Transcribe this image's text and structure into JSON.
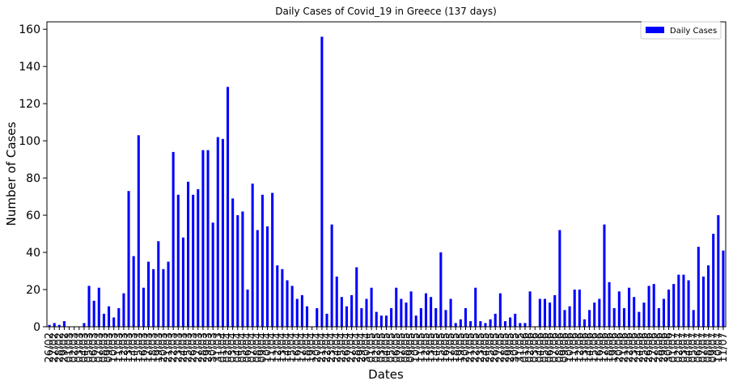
{
  "chart_data": {
    "type": "bar",
    "title": "Daily Cases of Covid_19 in Greece (137 days)",
    "xlabel": "Dates",
    "ylabel": "Number of Cases",
    "ylim": [
      0,
      164
    ],
    "yticks": [
      0,
      20,
      40,
      60,
      80,
      100,
      120,
      140,
      160
    ],
    "legend_position": "top-right",
    "grid": false,
    "bar_color": "#0000ff",
    "series": [
      {
        "name": "Daily Cases",
        "values": [
          1,
          2,
          1,
          3,
          0,
          0,
          0,
          2,
          22,
          14,
          21,
          7,
          11,
          5,
          10,
          18,
          73,
          38,
          103,
          21,
          35,
          31,
          46,
          31,
          35,
          94,
          71,
          48,
          78,
          71,
          74,
          95,
          95,
          56,
          102,
          101,
          129,
          69,
          60,
          62,
          20,
          77,
          52,
          71,
          54,
          72,
          33,
          31,
          25,
          22,
          15,
          17,
          11,
          0,
          10,
          156,
          7,
          55,
          27,
          16,
          11,
          17,
          32,
          10,
          15,
          21,
          8,
          6,
          6,
          10,
          21,
          15,
          13,
          19,
          6,
          10,
          18,
          16,
          10,
          40,
          9,
          15,
          2,
          4,
          10,
          3,
          21,
          3,
          2,
          4,
          7,
          18,
          3,
          5,
          7,
          2,
          2,
          19,
          0,
          15,
          15,
          13,
          17,
          52,
          9,
          11,
          20,
          20,
          4,
          9,
          13,
          15,
          55,
          24,
          10,
          19,
          10,
          21,
          16,
          8,
          13,
          22,
          23,
          10,
          15,
          20,
          23,
          28,
          28,
          25,
          9,
          43,
          27,
          33,
          50,
          60,
          41
        ]
      }
    ],
    "categories": [
      "26/02",
      "27/02",
      "28/02",
      "29/02",
      "01/03",
      "02/03",
      "03/03",
      "04/03",
      "05/03",
      "06/03",
      "07/03",
      "08/03",
      "09/03",
      "10/03",
      "11/03",
      "12/03",
      "13/03",
      "14/03",
      "15/03",
      "16/03",
      "17/03",
      "18/03",
      "19/03",
      "20/03",
      "21/03",
      "22/03",
      "23/03",
      "24/03",
      "25/03",
      "26/03",
      "27/03",
      "28/03",
      "29/03",
      "30/03",
      "31/03",
      "01/04",
      "02/04",
      "03/04",
      "04/04",
      "05/04",
      "06/04",
      "07/04",
      "08/04",
      "09/04",
      "10/04",
      "11/04",
      "12/04",
      "13/04",
      "14/04",
      "15/04",
      "16/04",
      "17/04",
      "18/04",
      "19/04",
      "20/04",
      "21/04",
      "22/04",
      "23/04",
      "24/04",
      "25/04",
      "26/04",
      "27/04",
      "28/04",
      "29/04",
      "30/04",
      "01/05",
      "02/05",
      "03/05",
      "04/05",
      "05/05",
      "06/05",
      "07/05",
      "08/05",
      "09/05",
      "10/05",
      "11/05",
      "12/05",
      "13/05",
      "14/05",
      "15/05",
      "16/05",
      "17/05",
      "18/05",
      "19/05",
      "20/05",
      "21/05",
      "22/05",
      "23/05",
      "24/05",
      "25/05",
      "26/05",
      "27/05",
      "28/05",
      "29/05",
      "30/05",
      "31/05",
      "01/06",
      "02/06",
      "03/06",
      "04/06",
      "05/06",
      "06/06",
      "07/06",
      "08/06",
      "09/06",
      "10/06",
      "11/06",
      "12/06",
      "13/06",
      "14/06",
      "15/06",
      "16/06",
      "17/06",
      "18/06",
      "19/06",
      "20/06",
      "21/06",
      "22/06",
      "23/06",
      "24/06",
      "25/06",
      "26/06",
      "27/06",
      "28/06",
      "29/06",
      "30/06",
      "01/07",
      "02/07",
      "03/07",
      "04/07",
      "05/07",
      "06/07",
      "07/07",
      "08/07",
      "09/07",
      "10/07",
      "11/07"
    ]
  }
}
